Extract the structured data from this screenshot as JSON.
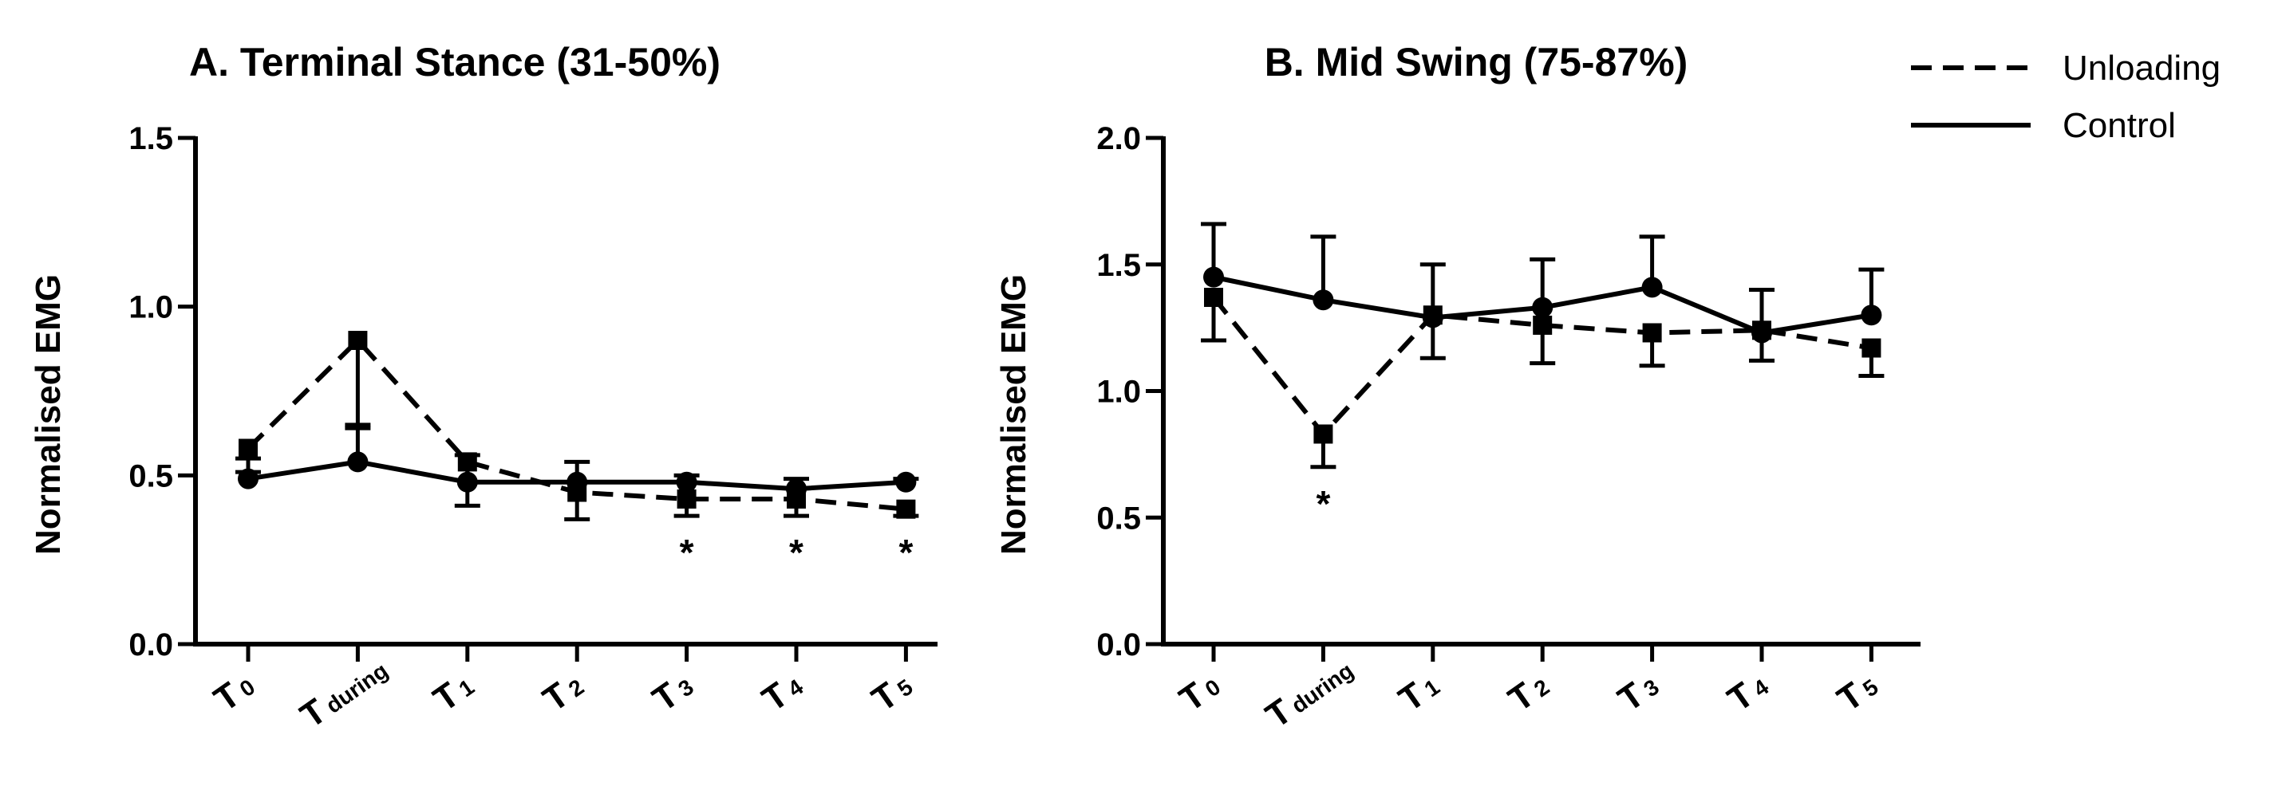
{
  "chart_data": [
    {
      "type": "line",
      "title": "A. Terminal Stance (31-50%)",
      "xlabel": "",
      "ylabel": "Normalised EMG",
      "ylim": [
        0,
        1.5
      ],
      "yticks": [
        "0.0",
        "0.5",
        "1.0",
        "1.5"
      ],
      "categories": [
        {
          "main": "T",
          "sub": "0"
        },
        {
          "main": "T",
          "sub": "during"
        },
        {
          "main": "T",
          "sub": "1"
        },
        {
          "main": "T",
          "sub": "2"
        },
        {
          "main": "T",
          "sub": "3"
        },
        {
          "main": "T",
          "sub": "4"
        },
        {
          "main": "T",
          "sub": "5"
        }
      ],
      "series": [
        {
          "name": "Unloading",
          "style": "dashed",
          "marker": "square",
          "values": [
            0.58,
            0.9,
            0.54,
            0.45,
            0.43,
            0.43,
            0.4
          ],
          "error": [
            0.07,
            0.26,
            0.13,
            0.08,
            0.05,
            0.05,
            0.02
          ],
          "error_dir": "down"
        },
        {
          "name": "Control",
          "style": "solid",
          "marker": "circle",
          "values": [
            0.49,
            0.54,
            0.48,
            0.48,
            0.48,
            0.46,
            0.48
          ],
          "error": [
            0.06,
            0.11,
            0.08,
            0.06,
            0.02,
            0.03,
            0.01
          ],
          "error_dir": "up"
        }
      ],
      "annotations": [
        {
          "category_index": 4,
          "text": "*"
        },
        {
          "category_index": 5,
          "text": "*"
        },
        {
          "category_index": 6,
          "text": "*"
        }
      ]
    },
    {
      "type": "line",
      "title": "B. Mid Swing (75-87%)",
      "xlabel": "",
      "ylabel": "Normalised EMG",
      "ylim": [
        0,
        2.0
      ],
      "yticks": [
        "0.0",
        "0.5",
        "1.0",
        "1.5",
        "2.0"
      ],
      "categories": [
        {
          "main": "T",
          "sub": "0"
        },
        {
          "main": "T",
          "sub": "during"
        },
        {
          "main": "T",
          "sub": "1"
        },
        {
          "main": "T",
          "sub": "2"
        },
        {
          "main": "T",
          "sub": "3"
        },
        {
          "main": "T",
          "sub": "4"
        },
        {
          "main": "T",
          "sub": "5"
        }
      ],
      "series": [
        {
          "name": "Unloading",
          "style": "dashed",
          "marker": "square",
          "values": [
            1.37,
            0.83,
            1.3,
            1.26,
            1.23,
            1.24,
            1.17
          ],
          "error": [
            0.17,
            0.13,
            0.17,
            0.15,
            0.13,
            0.12,
            0.11
          ],
          "error_dir": "down"
        },
        {
          "name": "Control",
          "style": "solid",
          "marker": "circle",
          "values": [
            1.45,
            1.36,
            1.29,
            1.33,
            1.41,
            1.23,
            1.3
          ],
          "error": [
            0.21,
            0.25,
            0.21,
            0.19,
            0.2,
            0.17,
            0.18
          ],
          "error_dir": "up"
        }
      ],
      "annotations": [
        {
          "category_index": 1,
          "text": "*"
        }
      ]
    }
  ],
  "legend": {
    "placement": "top-right",
    "entries": [
      {
        "label": "Unloading",
        "style": "dashed"
      },
      {
        "label": "Control",
        "style": "solid"
      }
    ]
  }
}
